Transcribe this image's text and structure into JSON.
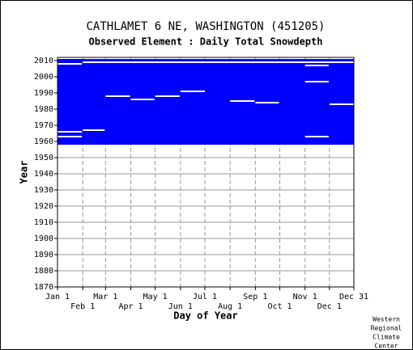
{
  "chart_data": {
    "type": "coverage",
    "title": "CATHLAMET 6 NE, WASHINGTON   (451205)",
    "subtitle": "Observed Element : Daily Total Snowdepth",
    "x_label": "Day of Year",
    "y_label": "Year",
    "footer": [
      "Western",
      "Regional",
      "Climate",
      "Center"
    ],
    "xlim": [
      1,
      365
    ],
    "xticks": [
      {
        "value": 1,
        "label": "Jan 1"
      },
      {
        "value": 32,
        "label": "Feb 1"
      },
      {
        "value": 60,
        "label": "Mar 1"
      },
      {
        "value": 91,
        "label": "Apr 1"
      },
      {
        "value": 121,
        "label": "May 1"
      },
      {
        "value": 152,
        "label": "Jun 1"
      },
      {
        "value": 182,
        "label": "Jul 1"
      },
      {
        "value": 213,
        "label": "Aug 1"
      },
      {
        "value": 244,
        "label": "Sep 1"
      },
      {
        "value": 274,
        "label": "Oct 1"
      },
      {
        "value": 305,
        "label": "Nov 1"
      },
      {
        "value": 335,
        "label": "Dec 1"
      },
      {
        "value": 365,
        "label": "Dec 31"
      }
    ],
    "ylim": [
      1870,
      2012
    ],
    "yticks": [
      1870,
      1880,
      1890,
      1900,
      1910,
      1920,
      1930,
      1940,
      1950,
      1960,
      1970,
      1980,
      1990,
      2000,
      2010
    ],
    "grid": true,
    "coverage": {
      "days": [
        1,
        365
      ],
      "years": [
        1958,
        2011
      ],
      "color": "#0000ff"
    },
    "gaps": [
      {
        "days": [
          32,
          365
        ],
        "year": 2009
      },
      {
        "days": [
          1,
          31
        ],
        "year": 2008
      },
      {
        "days": [
          305,
          334
        ],
        "year": 2007
      },
      {
        "days": [
          60,
          90
        ],
        "year": 1988
      },
      {
        "days": [
          91,
          120
        ],
        "year": 1986
      },
      {
        "days": [
          121,
          151
        ],
        "year": 1988
      },
      {
        "days": [
          152,
          182
        ],
        "year": 1991
      },
      {
        "days": [
          213,
          243
        ],
        "year": 1985
      },
      {
        "days": [
          244,
          273
        ],
        "year": 1984
      },
      {
        "days": [
          305,
          334
        ],
        "year": 1997
      },
      {
        "days": [
          335,
          365
        ],
        "year": 1983
      },
      {
        "days": [
          1,
          31
        ],
        "year": 1966
      },
      {
        "days": [
          1,
          31
        ],
        "year": 1963
      },
      {
        "days": [
          32,
          59
        ],
        "year": 1967
      },
      {
        "days": [
          305,
          334
        ],
        "year": 1963
      }
    ]
  }
}
